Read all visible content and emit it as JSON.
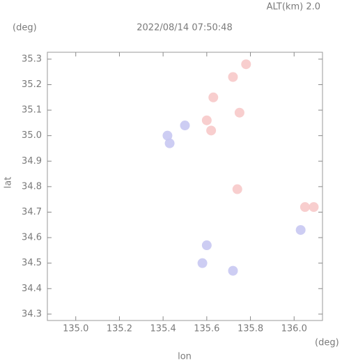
{
  "chart_data": {
    "type": "scatter",
    "title": "2022/08/14 07:50:48",
    "subtitle": "ALT(km) 2.0",
    "y_unit": "(deg)",
    "x_unit": "(deg)",
    "x_label": "lon",
    "y_label": "lat",
    "xlim": [
      134.87,
      136.13
    ],
    "ylim": [
      34.275,
      35.327
    ],
    "xticks": [
      {
        "value": 135,
        "label": "135.0"
      },
      135.2,
      135.4,
      135.6,
      135.8,
      {
        "value": 136,
        "label": "136.0"
      }
    ],
    "yticks": [
      34.3,
      34.4,
      34.5,
      34.6,
      34.7,
      34.8,
      34.9,
      {
        "value": 35,
        "label": "35.0"
      },
      35.1,
      35.2,
      35.3
    ],
    "series": [
      {
        "color": "#f7c9c9",
        "x": [
          135.78,
          135.72,
          135.63,
          135.6,
          135.62,
          135.75,
          135.74,
          136.05,
          136.09
        ],
        "values": [
          35.28,
          35.23,
          35.15,
          35.06,
          35.02,
          35.09,
          34.79,
          34.72,
          34.72
        ]
      },
      {
        "color": "#c8c8f2",
        "x": [
          135.42,
          135.43,
          135.5,
          135.58,
          135.6,
          135.72,
          136.03
        ],
        "values": [
          35.0,
          34.97,
          35.04,
          34.5,
          34.57,
          34.47,
          34.63
        ]
      }
    ]
  }
}
